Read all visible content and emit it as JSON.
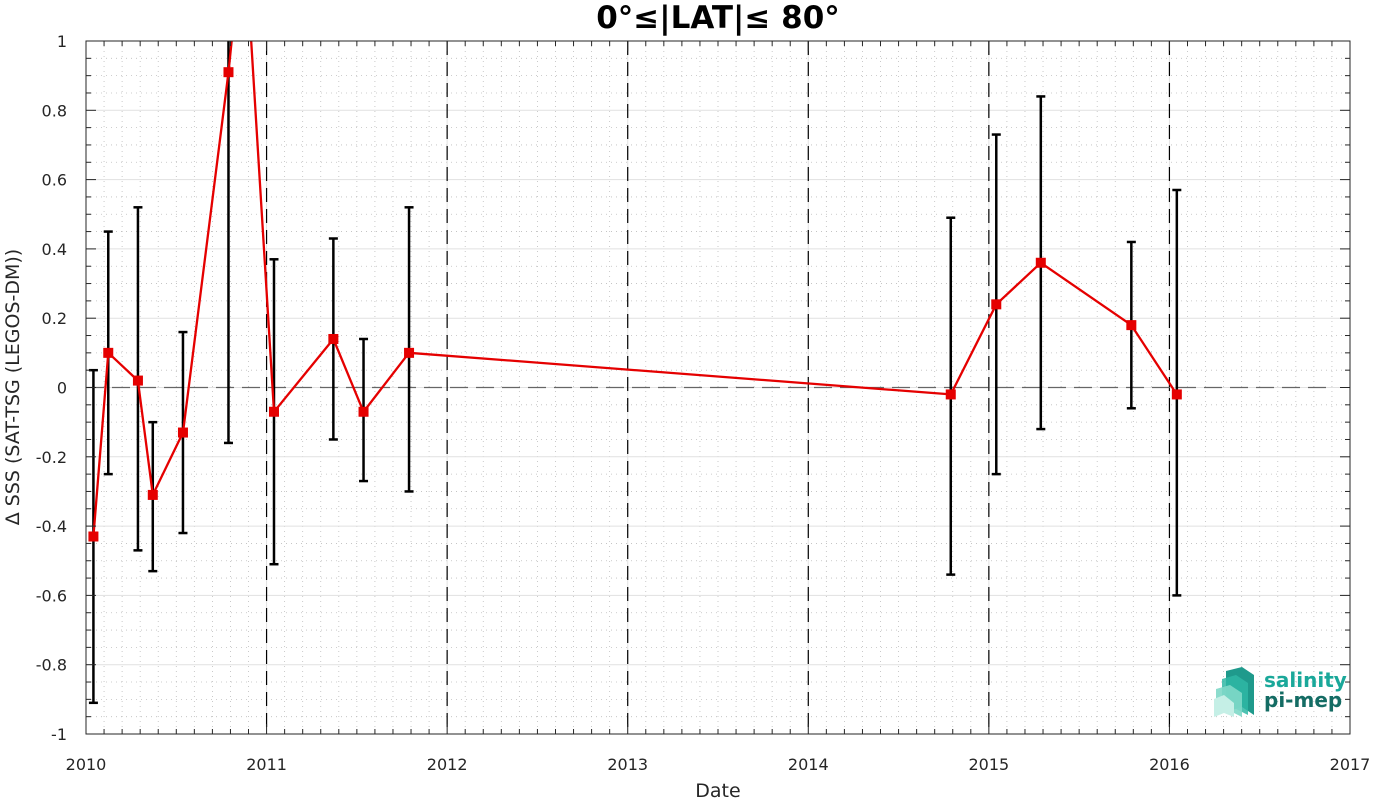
{
  "chart_data": {
    "type": "line",
    "title": "0°≤|LAT|≤ 80°",
    "xlabel": "Date",
    "ylabel": "Δ SSS (SAT-TSG (LEGOS-DM))",
    "xlim": [
      2010,
      2017
    ],
    "ylim": [
      -1,
      1
    ],
    "x_ticks": [
      "2010",
      "2011",
      "2012",
      "2013",
      "2014",
      "2015",
      "2016",
      "2017"
    ],
    "y_ticks": [
      "-1",
      "-0.8",
      "-0.6",
      "-0.4",
      "-0.2",
      "0",
      "0.2",
      "0.4",
      "0.6",
      "0.8",
      "1"
    ],
    "grid": true,
    "minor_grid": true,
    "year_dividers": [
      2011,
      2012,
      2013,
      2014,
      2015,
      2016
    ],
    "zero_line": 0,
    "series": [
      {
        "color": "#e50000",
        "marker": "square",
        "points": [
          {
            "x": "2010-01-16",
            "y": -0.43,
            "err_low": -0.91,
            "err_high": 0.05
          },
          {
            "x": "2010-02-15",
            "y": 0.1,
            "err_low": -0.25,
            "err_high": 0.45
          },
          {
            "x": "2010-04-16",
            "y": 0.02,
            "err_low": -0.47,
            "err_high": 0.52
          },
          {
            "x": "2010-05-16",
            "y": -0.31,
            "err_low": -0.53,
            "err_high": -0.1
          },
          {
            "x": "2010-07-16",
            "y": -0.13,
            "err_low": -0.42,
            "err_high": 0.16
          },
          {
            "x": "2010-10-16",
            "y": 0.91,
            "err_low": -0.16,
            "err_high": null
          },
          {
            "x": "2010-11-16",
            "y": null,
            "err_low": null,
            "err_high": null
          },
          {
            "x": "2011-01-16",
            "y": -0.07,
            "err_low": -0.51,
            "err_high": 0.37
          },
          {
            "x": "2011-05-16",
            "y": 0.14,
            "err_low": -0.15,
            "err_high": 0.43
          },
          {
            "x": "2011-07-16",
            "y": -0.07,
            "err_low": -0.27,
            "err_high": 0.14
          },
          {
            "x": "2011-10-16",
            "y": 0.1,
            "err_low": -0.3,
            "err_high": 0.52
          },
          {
            "x": "2014-10-16",
            "y": -0.02,
            "err_low": -0.54,
            "err_high": 0.49
          },
          {
            "x": "2015-01-16",
            "y": 0.24,
            "err_low": -0.25,
            "err_high": 0.73
          },
          {
            "x": "2015-04-16",
            "y": 0.36,
            "err_low": -0.12,
            "err_high": 0.84
          },
          {
            "x": "2015-10-16",
            "y": 0.18,
            "err_low": -0.06,
            "err_high": 0.42
          },
          {
            "x": "2016-01-16",
            "y": -0.02,
            "err_low": -0.6,
            "err_high": 0.57
          }
        ]
      }
    ]
  },
  "logo": {
    "line1": "salinity",
    "line2": "pi-mep",
    "color1": "#1aa89a",
    "color2": "#146c64"
  }
}
